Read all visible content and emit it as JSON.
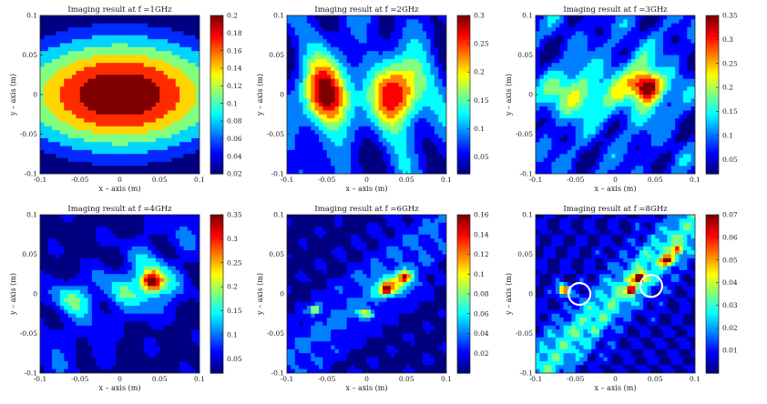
{
  "chart_data": [
    {
      "type": "contour",
      "title": "Imaging result at f =1GHz",
      "xlabel": "x – axis (m)",
      "ylabel": "y – axis (m)",
      "xlim": [
        -0.1,
        0.1
      ],
      "ylim": [
        -0.1,
        0.1
      ],
      "x_ticks": [
        -0.1,
        -0.05,
        0,
        0.05,
        0.1
      ],
      "y_ticks": [
        -0.1,
        -0.05,
        0,
        0.05,
        0.1
      ],
      "colorbar": {
        "min": 0.02,
        "max": 0.2,
        "ticks": [
          0.02,
          0.04,
          0.06,
          0.08,
          0.1,
          0.12,
          0.14,
          0.16,
          0.18,
          0.2
        ]
      },
      "peaks": [
        {
          "x": 0.0,
          "y": 0.0,
          "value": 0.2
        }
      ]
    },
    {
      "type": "contour",
      "title": "Imaging result at f =2GHz",
      "xlabel": "x – axis (m)",
      "ylabel": "y – axis (m)",
      "xlim": [
        -0.1,
        0.1
      ],
      "ylim": [
        -0.1,
        0.1
      ],
      "x_ticks": [
        -0.1,
        -0.05,
        0,
        0.05,
        0.1
      ],
      "y_ticks": [
        -0.1,
        -0.05,
        0,
        0.05,
        0.1
      ],
      "colorbar": {
        "min": 0.02,
        "max": 0.3,
        "ticks": [
          0.05,
          0.1,
          0.15,
          0.2,
          0.25,
          0.3
        ]
      },
      "peaks": [
        {
          "x": -0.05,
          "y": 0.0,
          "value": 0.3
        },
        {
          "x": 0.04,
          "y": 0.0,
          "value": 0.3
        }
      ]
    },
    {
      "type": "contour",
      "title": "Imaging result at f =3GHz",
      "xlabel": "x – axis (m)",
      "ylabel": "y – axis (m)",
      "xlim": [
        -0.1,
        0.1
      ],
      "ylim": [
        -0.1,
        0.1
      ],
      "x_ticks": [
        -0.1,
        -0.05,
        0,
        0.05,
        0.1
      ],
      "y_ticks": [
        -0.1,
        -0.05,
        0,
        0.05,
        0.1
      ],
      "colorbar": {
        "min": 0.02,
        "max": 0.35,
        "ticks": [
          0.05,
          0.1,
          0.15,
          0.2,
          0.25,
          0.3,
          0.35
        ]
      },
      "peaks": [
        {
          "x": 0.04,
          "y": 0.01,
          "value": 0.35
        },
        {
          "x": -0.05,
          "y": 0.0,
          "value": 0.2
        }
      ]
    },
    {
      "type": "contour",
      "title": "Imaging result at f =4GHz",
      "xlabel": "x – axis (m)",
      "ylabel": "y – axis (m)",
      "xlim": [
        -0.1,
        0.1
      ],
      "ylim": [
        -0.1,
        0.1
      ],
      "x_ticks": [
        -0.1,
        -0.05,
        0,
        0.05,
        0.1
      ],
      "y_ticks": [
        -0.1,
        -0.05,
        0,
        0.05,
        0.1
      ],
      "colorbar": {
        "min": 0.02,
        "max": 0.35,
        "ticks": [
          0.05,
          0.1,
          0.15,
          0.2,
          0.25,
          0.3,
          0.35
        ]
      },
      "peaks": [
        {
          "x": 0.04,
          "y": 0.015,
          "value": 0.35
        },
        {
          "x": -0.06,
          "y": -0.005,
          "value": 0.2
        }
      ]
    },
    {
      "type": "contour",
      "title": "Imaging result at f =6GHz",
      "xlabel": "x – axis (m)",
      "ylabel": "y – axis (m)",
      "xlim": [
        -0.1,
        0.1
      ],
      "ylim": [
        -0.1,
        0.1
      ],
      "x_ticks": [
        -0.1,
        -0.05,
        0,
        0.05,
        0.1
      ],
      "y_ticks": [
        -0.1,
        -0.05,
        0,
        0.05,
        0.1
      ],
      "colorbar": {
        "min": 0.0,
        "max": 0.16,
        "ticks": [
          0.02,
          0.04,
          0.06,
          0.08,
          0.1,
          0.12,
          0.14,
          0.16
        ]
      },
      "peaks": [
        {
          "x": 0.025,
          "y": 0.005,
          "value": 0.16
        },
        {
          "x": 0.045,
          "y": 0.02,
          "value": 0.14
        },
        {
          "x": -0.065,
          "y": -0.02,
          "value": 0.12
        },
        {
          "x": 0.0,
          "y": -0.025,
          "value": 0.12
        }
      ]
    },
    {
      "type": "contour",
      "title": "Imaging result at f =8GHz",
      "xlabel": "x – axis (m)",
      "ylabel": "y – axis (m)",
      "xlim": [
        -0.1,
        0.1
      ],
      "ylim": [
        -0.1,
        0.1
      ],
      "x_ticks": [
        -0.1,
        -0.05,
        0,
        0.05,
        0.1
      ],
      "y_ticks": [
        -0.1,
        -0.05,
        0,
        0.05,
        0.1
      ],
      "colorbar": {
        "min": 0.0,
        "max": 0.07,
        "ticks": [
          0.01,
          0.02,
          0.03,
          0.04,
          0.05,
          0.06,
          0.07
        ]
      },
      "peaks": [
        {
          "x": 0.03,
          "y": 0.02,
          "value": 0.07
        },
        {
          "x": 0.02,
          "y": 0.005,
          "value": 0.07
        },
        {
          "x": -0.065,
          "y": 0.005,
          "value": 0.07
        },
        {
          "x": 0.065,
          "y": 0.04,
          "value": 0.06
        }
      ],
      "markers": [
        {
          "shape": "circle",
          "x": -0.045,
          "y": 0.0
        },
        {
          "shape": "circle",
          "x": 0.045,
          "y": 0.01
        }
      ]
    }
  ]
}
